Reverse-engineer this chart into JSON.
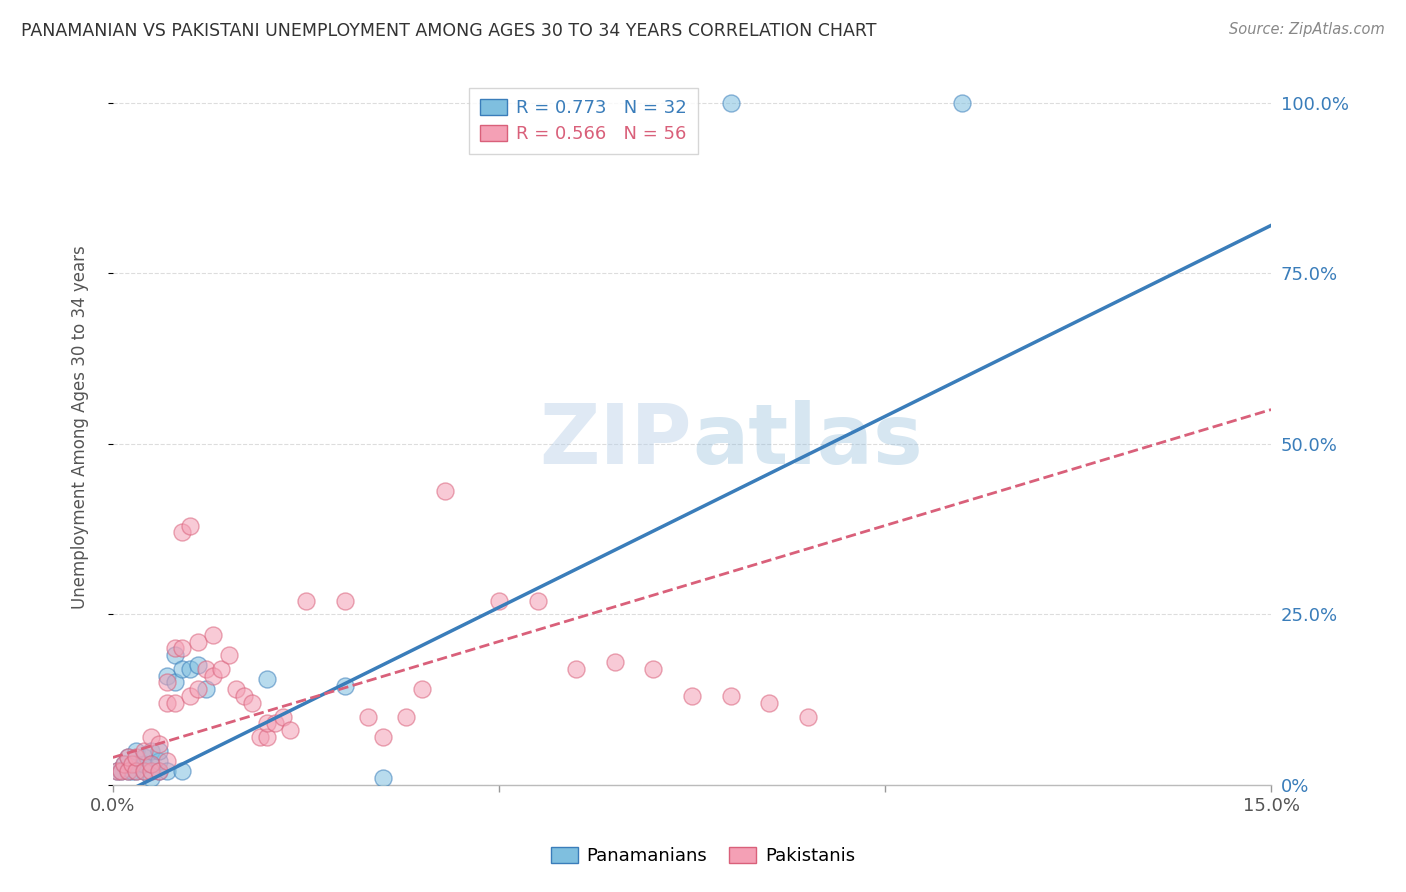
{
  "title": "PANAMANIAN VS PAKISTANI UNEMPLOYMENT AMONG AGES 30 TO 34 YEARS CORRELATION CHART",
  "source": "Source: ZipAtlas.com",
  "ylabel": "Unemployment Among Ages 30 to 34 years",
  "xlim": [
    0.0,
    0.15
  ],
  "ylim": [
    0.0,
    1.05
  ],
  "xtick_positions": [
    0.0,
    0.05,
    0.1,
    0.15
  ],
  "xtick_labels": [
    "0.0%",
    "",
    "",
    "15.0%"
  ],
  "yticks_right": [
    0.0,
    0.25,
    0.5,
    0.75,
    1.0
  ],
  "ytick_labels_right": [
    "0%",
    "25.0%",
    "50.0%",
    "75.0%",
    "100.0%"
  ],
  "blue_color": "#7fbfdf",
  "pink_color": "#f4a0b5",
  "blue_line_color": "#3a7dba",
  "pink_line_color": "#d9607a",
  "legend_blue_R": "R = 0.773",
  "legend_blue_N": "N = 32",
  "legend_pink_R": "R = 0.566",
  "legend_pink_N": "N = 56",
  "blue_line_x0": 0.0,
  "blue_line_y0": -0.02,
  "blue_line_x1": 0.15,
  "blue_line_y1": 0.82,
  "pink_line_x0": 0.0,
  "pink_line_y0": 0.04,
  "pink_line_x1": 0.15,
  "pink_line_y1": 0.55,
  "blue_scatter_x": [
    0.0005,
    0.001,
    0.0015,
    0.002,
    0.002,
    0.0025,
    0.003,
    0.003,
    0.003,
    0.004,
    0.004,
    0.004,
    0.005,
    0.005,
    0.005,
    0.006,
    0.006,
    0.006,
    0.007,
    0.007,
    0.008,
    0.008,
    0.009,
    0.009,
    0.01,
    0.011,
    0.012,
    0.02,
    0.03,
    0.035,
    0.08,
    0.11
  ],
  "blue_scatter_y": [
    0.02,
    0.02,
    0.03,
    0.02,
    0.04,
    0.02,
    0.02,
    0.03,
    0.05,
    0.02,
    0.03,
    0.04,
    0.01,
    0.03,
    0.05,
    0.02,
    0.035,
    0.05,
    0.02,
    0.16,
    0.15,
    0.19,
    0.02,
    0.17,
    0.17,
    0.175,
    0.14,
    0.155,
    0.145,
    0.01,
    1.0,
    1.0
  ],
  "pink_scatter_x": [
    0.0005,
    0.001,
    0.0015,
    0.002,
    0.002,
    0.0025,
    0.003,
    0.003,
    0.004,
    0.004,
    0.005,
    0.005,
    0.005,
    0.006,
    0.006,
    0.007,
    0.007,
    0.007,
    0.008,
    0.008,
    0.009,
    0.009,
    0.01,
    0.01,
    0.011,
    0.011,
    0.012,
    0.013,
    0.013,
    0.014,
    0.015,
    0.016,
    0.017,
    0.018,
    0.019,
    0.02,
    0.02,
    0.021,
    0.022,
    0.023,
    0.025,
    0.03,
    0.033,
    0.035,
    0.038,
    0.04,
    0.043,
    0.05,
    0.055,
    0.06,
    0.065,
    0.07,
    0.075,
    0.08,
    0.085,
    0.09
  ],
  "pink_scatter_y": [
    0.02,
    0.02,
    0.03,
    0.02,
    0.04,
    0.03,
    0.02,
    0.04,
    0.02,
    0.05,
    0.02,
    0.03,
    0.07,
    0.02,
    0.06,
    0.035,
    0.12,
    0.15,
    0.12,
    0.2,
    0.2,
    0.37,
    0.38,
    0.13,
    0.14,
    0.21,
    0.17,
    0.16,
    0.22,
    0.17,
    0.19,
    0.14,
    0.13,
    0.12,
    0.07,
    0.07,
    0.09,
    0.09,
    0.1,
    0.08,
    0.27,
    0.27,
    0.1,
    0.07,
    0.1,
    0.14,
    0.43,
    0.27,
    0.27,
    0.17,
    0.18,
    0.17,
    0.13,
    0.13,
    0.12,
    0.1
  ],
  "background_color": "#ffffff",
  "grid_color": "#dddddd"
}
